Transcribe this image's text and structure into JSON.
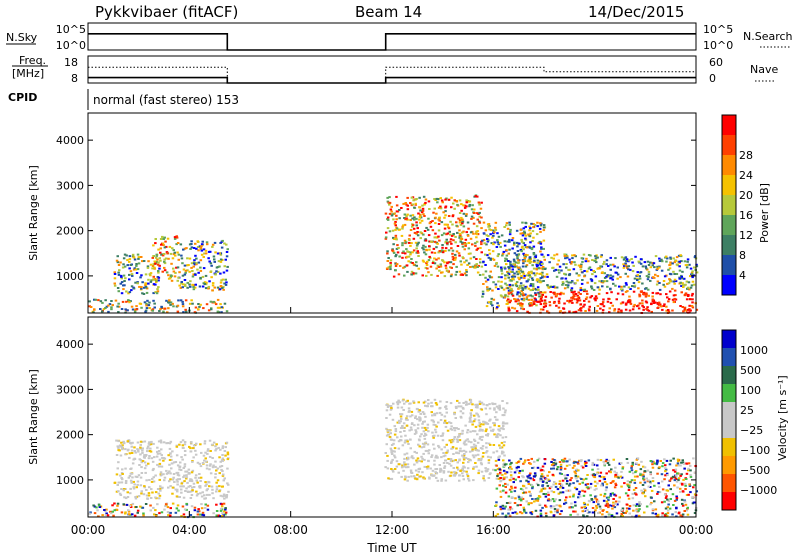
{
  "header": {
    "radar": "Pykkvibaer (fitACF)",
    "beam": "Beam 14",
    "date": "14/Dec/2015"
  },
  "strip_labels": {
    "nsky": "N.Sky",
    "nsky_ticks": [
      "10^5",
      "10^0"
    ],
    "nsearch": "N.Search",
    "nsearch_ticks": [
      "10^5",
      "10^0"
    ],
    "freq_top": "Freq.",
    "freq_bottom": "[MHz]",
    "freq_ticks": [
      "18",
      "8"
    ],
    "nave": "Nave",
    "nave_ticks": [
      "60",
      "0"
    ],
    "cpid": "CPID",
    "cpid_text": "normal (fast stereo) 153"
  },
  "colors": {
    "power": [
      "#0000ff",
      "#1f4fa8",
      "#3d7f64",
      "#5fa55a",
      "#b6c93a",
      "#f5c200",
      "#ff8a00",
      "#ff4000",
      "#ff0000"
    ],
    "velocity": [
      "#ff0000",
      "#ff5500",
      "#ff9a00",
      "#f0c000",
      "#c8c8c8",
      "#c8c8c8",
      "#44bb44",
      "#2a6a4a",
      "#2050b0",
      "#0000cc"
    ]
  },
  "chart_data": [
    {
      "type": "line",
      "title": "N.Sky / N.Search",
      "ylabel": "N.Sky",
      "ylabel_right": "N.Search",
      "x": [
        "00:00",
        "05:30",
        "05:30",
        "11:45",
        "11:45",
        "24:00"
      ],
      "series": [
        {
          "name": "N.Sky",
          "values": [
            1000,
            1000,
            1,
            1,
            1000,
            1000
          ]
        },
        {
          "name": "N.Search",
          "values": [
            1000,
            1000,
            1,
            1,
            1000,
            1000
          ]
        }
      ],
      "yscale": "log",
      "ylim": [
        1,
        100000
      ]
    },
    {
      "type": "line",
      "title": "Freq / Nave",
      "ylabel": "Freq. [MHz]",
      "ylabel_right": "Nave",
      "x": [
        "00:00",
        "05:30",
        "05:30",
        "11:45",
        "11:45",
        "18:00",
        "18:00",
        "24:00"
      ],
      "series": [
        {
          "name": "Freq",
          "values": [
            10,
            10,
            8,
            8,
            10,
            10,
            10,
            10
          ]
        },
        {
          "name": "Nave",
          "values": [
            35,
            35,
            0,
            0,
            35,
            35,
            25,
            25
          ]
        }
      ],
      "ylim": [
        8,
        18
      ],
      "y2lim": [
        0,
        60
      ]
    },
    {
      "type": "heatmap",
      "title": "Power",
      "xlabel": "",
      "ylabel": "Slant Range [km]",
      "colorbar_label": "Power [dB]",
      "colorbar_ticks": [
        "4",
        "8",
        "12",
        "16",
        "20",
        "24",
        "28"
      ],
      "yticks": [
        "1000",
        "2000",
        "3000",
        "4000"
      ],
      "ylim": [
        180,
        4600
      ],
      "xlim": [
        "00:00",
        "24:00"
      ],
      "patches": [
        {
          "t0": 0.0,
          "t1": 5.5,
          "r0": 200,
          "r1": 500,
          "level": "low"
        },
        {
          "t0": 1.0,
          "t1": 2.8,
          "r0": 600,
          "r1": 1500,
          "level": "mid"
        },
        {
          "t0": 2.5,
          "t1": 3.5,
          "r0": 900,
          "r1": 1900,
          "level": "high"
        },
        {
          "t0": 3.5,
          "t1": 5.5,
          "r0": 700,
          "r1": 1800,
          "level": "mid"
        },
        {
          "t0": 11.7,
          "t1": 15.5,
          "r0": 1000,
          "r1": 2800,
          "level": "high"
        },
        {
          "t0": 15.5,
          "t1": 18.0,
          "r0": 300,
          "r1": 2200,
          "level": "mid"
        },
        {
          "t0": 16.5,
          "t1": 24.0,
          "r0": 200,
          "r1": 700,
          "level": "peak"
        },
        {
          "t0": 16.5,
          "t1": 24.0,
          "r0": 700,
          "r1": 1500,
          "level": "mid"
        }
      ]
    },
    {
      "type": "heatmap",
      "title": "Velocity",
      "xlabel": "Time UT",
      "ylabel": "Slant Range [km]",
      "colorbar_label": "Velocity [m s⁻¹]",
      "colorbar_ticks": [
        "1000",
        "500",
        "100",
        "25",
        "−25",
        "−100",
        "−500",
        "−1000"
      ],
      "yticks": [
        "1000",
        "2000",
        "3000",
        "4000"
      ],
      "xticks": [
        "00:00",
        "04:00",
        "08:00",
        "12:00",
        "16:00",
        "20:00",
        "00:00"
      ],
      "ylim": [
        180,
        4600
      ],
      "xlim": [
        "00:00",
        "24:00"
      ],
      "patches": [
        {
          "t0": 0.0,
          "t1": 5.5,
          "r0": 200,
          "r1": 500,
          "level": "mixed"
        },
        {
          "t0": 1.0,
          "t1": 5.5,
          "r0": 600,
          "r1": 1900,
          "level": "ground"
        },
        {
          "t0": 11.7,
          "t1": 16.5,
          "r0": 1000,
          "r1": 2800,
          "level": "ground"
        },
        {
          "t0": 16.0,
          "t1": 24.0,
          "r0": 200,
          "r1": 1500,
          "level": "mixed"
        }
      ]
    }
  ]
}
